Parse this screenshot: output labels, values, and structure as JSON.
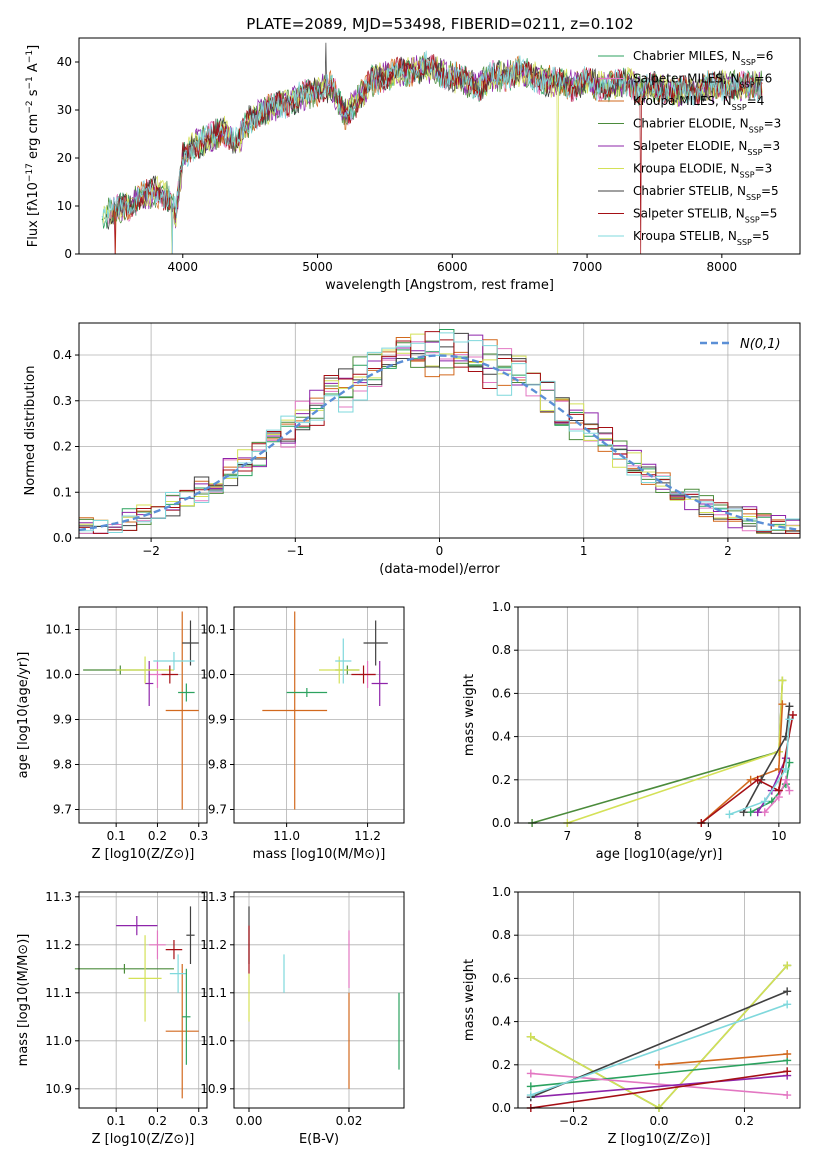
{
  "figure_title": "PLATE=2089, MJD=53498, FIBERID=0211, z=0.102",
  "series_colors": [
    "#2ca25f",
    "#e377c2",
    "#d2691e",
    "#4b8b3b",
    "#8e24aa",
    "#d4e157",
    "#404040",
    "#a50f15",
    "#7fd8dc"
  ],
  "chart_data": [
    {
      "type": "line",
      "title": "PLATE=2089, MJD=53498, FIBERID=0211, z=0.102",
      "xlabel": "wavelength [Angstrom, rest frame]",
      "ylabel": "Flux [f_λ10^-17 erg cm^-2 s^-1 A^-1]",
      "xlim": [
        3230,
        8580
      ],
      "ylim": [
        0,
        45
      ],
      "xticks": [
        "4000",
        "5000",
        "6000",
        "7000",
        "8000"
      ],
      "yticks": [
        "0",
        "10",
        "20",
        "30",
        "40"
      ],
      "grid": false,
      "legend_position": "top-right",
      "x_knots": [
        3400,
        3500,
        3600,
        3700,
        3800,
        3900,
        3950,
        4000,
        4100,
        4200,
        4300,
        4400,
        4500,
        4600,
        4700,
        4800,
        4900,
        5000,
        5100,
        5200,
        5300,
        5400,
        5500,
        5600,
        5700,
        5800,
        5900,
        6000,
        6100,
        6200,
        6300,
        6400,
        6500,
        6600,
        6700,
        6800,
        6900,
        7000,
        7100,
        7200,
        7300,
        7400,
        7500,
        7600,
        7700,
        7800,
        7900,
        8000,
        8100,
        8200,
        8300
      ],
      "y_knots": [
        8,
        9,
        10,
        12,
        13,
        12,
        8,
        20,
        23,
        24,
        26,
        23,
        28,
        30,
        31,
        32,
        33,
        34,
        35,
        29,
        32,
        36,
        37,
        38,
        38,
        39,
        38,
        37,
        36,
        35,
        37,
        37,
        38,
        37,
        36,
        36,
        35,
        36,
        35,
        35,
        36,
        34,
        35,
        34,
        34,
        34,
        35,
        35,
        35,
        35,
        35
      ],
      "series": [
        {
          "name": "Chabrier MILES, N_SSP=6"
        },
        {
          "name": "Salpeter MILES, N_SSP=6"
        },
        {
          "name": "Kroupa MILES, N_SSP=4"
        },
        {
          "name": "Chabrier ELODIE, N_SSP=3"
        },
        {
          "name": "Salpeter ELODIE, N_SSP=3"
        },
        {
          "name": "Kroupa ELODIE, N_SSP=3"
        },
        {
          "name": "Chabrier STELIB, N_SSP=5"
        },
        {
          "name": "Salpeter STELIB, N_SSP=5"
        },
        {
          "name": "Kroupa STELIB, N_SSP=5"
        }
      ]
    },
    {
      "type": "histogram",
      "xlabel": "(data-model)/error",
      "ylabel": "Normed distribution",
      "xlim": [
        -2.5,
        2.5
      ],
      "ylim": [
        0,
        0.47
      ],
      "xticks": [
        "−2",
        "−1",
        "0",
        "1",
        "2"
      ],
      "yticks": [
        "0.0",
        "0.1",
        "0.2",
        "0.3",
        "0.4"
      ],
      "grid": true,
      "legend_position": "top-right",
      "reference_label": "N(0,1)",
      "bins": 50,
      "bin_width": 0.1
    },
    {
      "type": "scatter",
      "xlabel": "Z [log10(Z/Z⊙)]",
      "ylabel": "age  [log10(age/yr)]",
      "xlim": [
        0.01,
        0.32
      ],
      "ylim": [
        9.67,
        10.15
      ],
      "xticks": [
        "0.1",
        "0.2",
        "0.3"
      ],
      "yticks": [
        "9.7",
        "9.8",
        "9.9",
        "10.0",
        "10.1"
      ],
      "points": [
        {
          "series": "Salpeter MILES",
          "x": 0.2,
          "y": 10.0,
          "xerr": 0.02,
          "yerr": 0.03
        },
        {
          "series": "Kroupa MILES",
          "x": 0.26,
          "y": 9.92,
          "xerr": 0.04,
          "yerr": 0.22
        },
        {
          "series": "Chabrier ELODIE",
          "x": 0.11,
          "y": 10.01,
          "xerr": 0.09,
          "yerr": 0.01
        },
        {
          "series": "Salpeter ELODIE",
          "x": 0.18,
          "y": 9.98,
          "xerr": 0.01,
          "yerr": 0.05
        },
        {
          "series": "Kroupa ELODIE",
          "x": 0.17,
          "y": 10.01,
          "xerr": 0.07,
          "yerr": 0.03
        },
        {
          "series": "Chabrier STELIB",
          "x": 0.28,
          "y": 10.07,
          "xerr": 0.02,
          "yerr": 0.05
        },
        {
          "series": "Salpeter STELIB",
          "x": 0.23,
          "y": 10.0,
          "xerr": 0.02,
          "yerr": 0.02
        },
        {
          "series": "Kroupa STELIB",
          "x": 0.24,
          "y": 10.03,
          "xerr": 0.05,
          "yerr": 0.02
        },
        {
          "series": "Chabrier MILES",
          "x": 0.27,
          "y": 9.96,
          "xerr": 0.02,
          "yerr": 0.02
        }
      ]
    },
    {
      "type": "scatter",
      "xlabel": "mass [log10(M/M⊙)]",
      "ylabel": "",
      "xlim": [
        10.87,
        11.29
      ],
      "ylim": [
        9.67,
        10.15
      ],
      "xticks": [
        "11.0",
        "11.2"
      ],
      "yticks": [
        "9.7",
        "9.8",
        "9.9",
        "10.0",
        "10.1"
      ],
      "points": [
        {
          "series": "Salpeter MILES",
          "x": 11.2,
          "y": 10.0,
          "xerr": 0.02,
          "yerr": 0.03
        },
        {
          "series": "Kroupa MILES",
          "x": 11.02,
          "y": 9.92,
          "xerr": 0.08,
          "yerr": 0.22
        },
        {
          "series": "Chabrier ELODIE",
          "x": 11.15,
          "y": 10.01,
          "xerr": 0.03,
          "yerr": 0.01
        },
        {
          "series": "Salpeter ELODIE",
          "x": 11.23,
          "y": 9.98,
          "xerr": 0.02,
          "yerr": 0.05
        },
        {
          "series": "Kroupa ELODIE",
          "x": 11.13,
          "y": 10.01,
          "xerr": 0.05,
          "yerr": 0.03
        },
        {
          "series": "Chabrier STELIB",
          "x": 11.22,
          "y": 10.07,
          "xerr": 0.03,
          "yerr": 0.05
        },
        {
          "series": "Salpeter STELIB",
          "x": 11.19,
          "y": 10.0,
          "xerr": 0.03,
          "yerr": 0.02
        },
        {
          "series": "Kroupa STELIB",
          "x": 11.14,
          "y": 10.03,
          "xerr": 0.02,
          "yerr": 0.05
        },
        {
          "series": "Chabrier MILES",
          "x": 11.05,
          "y": 9.96,
          "xerr": 0.05,
          "yerr": 0.01
        }
      ]
    },
    {
      "type": "line",
      "xlabel": "age  [log10(age/yr)]",
      "ylabel": "mass weight",
      "xlim": [
        6.3,
        10.3
      ],
      "ylim": [
        0,
        1
      ],
      "xticks": [
        "7",
        "8",
        "9",
        "10"
      ],
      "yticks": [
        "0.0",
        "0.2",
        "0.4",
        "0.6",
        "0.8",
        "1.0"
      ],
      "grid": true,
      "series": [
        {
          "name": "Chabrier MILES",
          "x": [
            9.6,
            9.9,
            10.1,
            10.15
          ],
          "y": [
            0.05,
            0.1,
            0.18,
            0.28
          ]
        },
        {
          "name": "Salpeter MILES",
          "x": [
            9.8,
            10.0,
            10.1,
            10.15
          ],
          "y": [
            0.05,
            0.12,
            0.2,
            0.15
          ]
        },
        {
          "name": "Kroupa MILES",
          "x": [
            8.9,
            9.6,
            10.0,
            10.05
          ],
          "y": [
            0.0,
            0.2,
            0.25,
            0.55
          ]
        },
        {
          "name": "Chabrier ELODIE",
          "x": [
            6.5,
            10.0,
            10.05
          ],
          "y": [
            0.0,
            0.33,
            0.66
          ]
        },
        {
          "name": "Salpeter ELODIE",
          "x": [
            9.7,
            9.9,
            10.1
          ],
          "y": [
            0.05,
            0.15,
            0.3
          ]
        },
        {
          "name": "Kroupa ELODIE",
          "x": [
            7.0,
            10.0,
            10.05
          ],
          "y": [
            0.0,
            0.33,
            0.66
          ]
        },
        {
          "name": "Chabrier STELIB",
          "x": [
            9.5,
            9.75,
            10.1,
            10.15
          ],
          "y": [
            0.05,
            0.2,
            0.4,
            0.54
          ]
        },
        {
          "name": "Salpeter STELIB",
          "x": [
            8.9,
            9.7,
            10.0,
            10.2
          ],
          "y": [
            0.0,
            0.2,
            0.15,
            0.5
          ]
        },
        {
          "name": "Kroupa STELIB",
          "x": [
            9.3,
            9.8,
            10.1,
            10.15
          ],
          "y": [
            0.04,
            0.1,
            0.25,
            0.48
          ]
        }
      ]
    },
    {
      "type": "scatter",
      "xlabel": "Z [log10(Z/Z⊙)]",
      "ylabel": "mass [log10(M/M⊙)]",
      "xlim": [
        0.01,
        0.32
      ],
      "ylim": [
        10.86,
        11.31
      ],
      "xticks": [
        "0.1",
        "0.2",
        "0.3"
      ],
      "yticks": [
        "10.9",
        "11.0",
        "11.1",
        "11.2",
        "11.3"
      ],
      "points": [
        {
          "series": "Salpeter MILES",
          "x": 0.2,
          "y": 11.2,
          "xerr": 0.02,
          "yerr": 0.03
        },
        {
          "series": "Kroupa MILES",
          "x": 0.26,
          "y": 11.02,
          "xerr": 0.04,
          "yerr": 0.14
        },
        {
          "series": "Chabrier ELODIE",
          "x": 0.12,
          "y": 11.15,
          "xerr": 0.12,
          "yerr": 0.01
        },
        {
          "series": "Salpeter ELODIE",
          "x": 0.15,
          "y": 11.24,
          "xerr": 0.05,
          "yerr": 0.02
        },
        {
          "series": "Kroupa ELODIE",
          "x": 0.17,
          "y": 11.13,
          "xerr": 0.04,
          "yerr": 0.09
        },
        {
          "series": "Chabrier STELIB",
          "x": 0.28,
          "y": 11.22,
          "xerr": 0.01,
          "yerr": 0.06
        },
        {
          "series": "Salpeter STELIB",
          "x": 0.24,
          "y": 11.19,
          "xerr": 0.02,
          "yerr": 0.02
        },
        {
          "series": "Kroupa STELIB",
          "x": 0.25,
          "y": 11.14,
          "xerr": 0.02,
          "yerr": 0.04
        },
        {
          "series": "Chabrier MILES",
          "x": 0.27,
          "y": 11.05,
          "xerr": 0.01,
          "yerr": 0.1
        }
      ]
    },
    {
      "type": "scatter",
      "xlabel": "E(B-V)",
      "ylabel": "",
      "xlim": [
        -0.003,
        0.031
      ],
      "ylim": [
        10.86,
        11.31
      ],
      "xticks": [
        "0.00",
        "0.02"
      ],
      "yticks": [
        "10.9",
        "11.0",
        "11.1",
        "11.2",
        "11.3"
      ],
      "points": [
        {
          "series": "Chabrier STELIB",
          "x": 0.0,
          "y": 11.22,
          "yerr": 0.06
        },
        {
          "series": "Salpeter STELIB",
          "x": 0.0,
          "y": 11.19,
          "yerr": 0.05
        },
        {
          "series": "Kroupa ELODIE",
          "x": 0.0,
          "y": 11.09,
          "yerr": 0.05
        },
        {
          "series": "Kroupa STELIB",
          "x": 0.007,
          "y": 11.14,
          "yerr": 0.04
        },
        {
          "series": "Salpeter MILES",
          "x": 0.02,
          "y": 11.17,
          "yerr": 0.06
        },
        {
          "series": "Kroupa MILES",
          "x": 0.02,
          "y": 11.0,
          "yerr": 0.1
        },
        {
          "series": "Chabrier MILES",
          "x": 0.03,
          "y": 11.02,
          "yerr": 0.08
        }
      ]
    },
    {
      "type": "line",
      "xlabel": "Z [log10(Z/Z⊙)]",
      "ylabel": "mass weight",
      "xlim": [
        -0.33,
        0.33
      ],
      "ylim": [
        0,
        1
      ],
      "xticks": [
        "−0.2",
        "0.0",
        "0.2"
      ],
      "yticks": [
        "0.0",
        "0.2",
        "0.4",
        "0.6",
        "0.8",
        "1.0"
      ],
      "grid": true,
      "series": [
        {
          "name": "Chabrier MILES",
          "x": [
            -0.3,
            0.3
          ],
          "y": [
            0.1,
            0.22
          ]
        },
        {
          "name": "Salpeter MILES",
          "x": [
            -0.3,
            0.3
          ],
          "y": [
            0.16,
            0.06
          ]
        },
        {
          "name": "Kroupa MILES",
          "x": [
            0.0,
            0.3
          ],
          "y": [
            0.2,
            0.25
          ]
        },
        {
          "name": "Chabrier ELODIE",
          "x": [
            -0.3,
            0.0,
            0.3
          ],
          "y": [
            0.33,
            0.0,
            0.66
          ]
        },
        {
          "name": "Salpeter ELODIE",
          "x": [
            -0.3,
            0.3
          ],
          "y": [
            0.05,
            0.15
          ]
        },
        {
          "name": "Kroupa ELODIE",
          "x": [
            -0.3,
            0.0,
            0.3
          ],
          "y": [
            0.33,
            0.0,
            0.66
          ]
        },
        {
          "name": "Chabrier STELIB",
          "x": [
            -0.3,
            0.3
          ],
          "y": [
            0.05,
            0.54
          ]
        },
        {
          "name": "Salpeter STELIB",
          "x": [
            -0.3,
            0.3
          ],
          "y": [
            0.0,
            0.17
          ]
        },
        {
          "name": "Kroupa STELIB",
          "x": [
            -0.3,
            0.3
          ],
          "y": [
            0.06,
            0.48
          ]
        }
      ]
    }
  ]
}
